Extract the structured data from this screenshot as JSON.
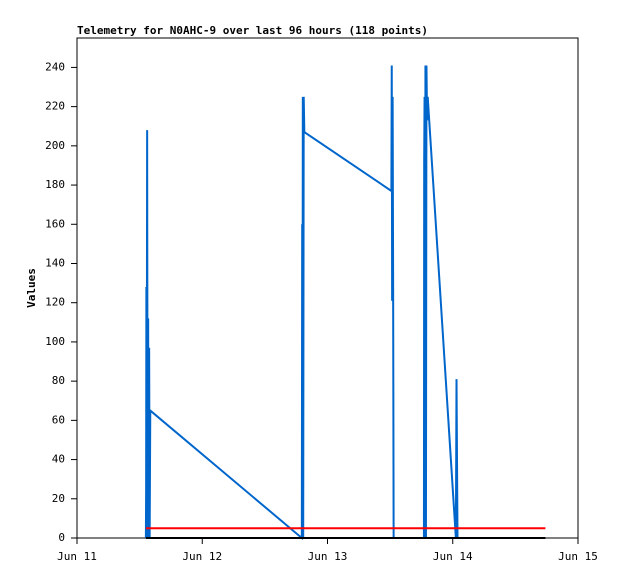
{
  "chart_data": {
    "type": "line",
    "title": "Telemetry for N0AHC-9 over last 96 hours (118 points)",
    "y_label": "Values",
    "xlim": [
      11,
      15
    ],
    "xticks": [
      {
        "value": 11,
        "label": "Jun 11"
      },
      {
        "value": 12,
        "label": "Jun 12"
      },
      {
        "value": 13,
        "label": "Jun 13"
      },
      {
        "value": 14,
        "label": "Jun 14"
      },
      {
        "value": 15,
        "label": "Jun 15"
      }
    ],
    "ylim": [
      0,
      255
    ],
    "yticks": [
      0,
      20,
      40,
      60,
      80,
      100,
      120,
      140,
      160,
      180,
      200,
      220,
      240
    ],
    "series": [
      {
        "color": "#0066cc",
        "x": [
          11.55,
          11.552,
          11.554,
          11.556,
          11.56,
          11.564,
          11.568,
          11.572,
          11.576,
          11.58,
          11.585,
          12.795,
          12.798,
          12.8,
          12.803,
          12.806,
          12.81,
          12.815,
          13.51,
          13.513,
          13.516,
          13.52,
          13.524,
          13.528,
          13.77,
          13.772,
          13.775,
          13.778,
          13.782,
          13.786,
          13.79,
          13.795,
          13.8,
          14.025,
          14.03,
          14.034,
          14.038
        ],
        "values": [
          0,
          25,
          128,
          0,
          208,
          0,
          112,
          0,
          97,
          0,
          65,
          0,
          160,
          0,
          225,
          0,
          225,
          207,
          177,
          241,
          121,
          225,
          128,
          0,
          0,
          193,
          225,
          0,
          241,
          0,
          241,
          213,
          225,
          0,
          81,
          40,
          0
        ]
      },
      {
        "color": "#ff0000",
        "x": [
          11.55,
          14.74
        ],
        "values": [
          5,
          5
        ]
      },
      {
        "color": "#000000",
        "x": [
          11.55,
          14.74
        ],
        "values": [
          0,
          0
        ]
      }
    ]
  }
}
